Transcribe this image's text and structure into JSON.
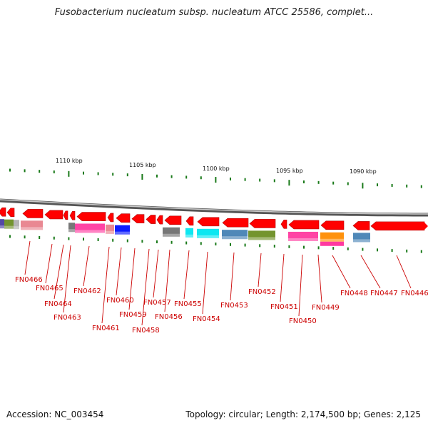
{
  "header": {
    "title": "Fusobacterium nucleatum subsp. nucleatum ATCC 25586, complet..."
  },
  "footer": {
    "accession": "Accession: NC_003454",
    "stats": "Topology: circular; Length: 2,174,500 bp; Genes: 2,125"
  },
  "colors": {
    "gene": "#ff0000",
    "backbone": "#7f7f7f",
    "tick": "#1a7a1a",
    "label": "#cc0000"
  },
  "scale": {
    "labels": [
      "1110 kbp",
      "1105 kbp",
      "1100 kbp",
      "1095 kbp",
      "1090 kbp"
    ]
  },
  "genes": [
    {
      "name": "FN0466",
      "cog_color": "#e8828c"
    },
    {
      "name": "FN0465",
      "cog_color": ""
    },
    {
      "name": "FN0464",
      "cog_color": ""
    },
    {
      "name": "FN0463",
      "cog_color": ""
    },
    {
      "name": "FN0462",
      "cog_color": "#ff3aa0"
    },
    {
      "name": "FN0461",
      "cog_color": "#e8828c"
    },
    {
      "name": "FN0460",
      "cog_color": "#0010ff"
    },
    {
      "name": "FN0459",
      "cog_color": ""
    },
    {
      "name": "FN0458",
      "cog_color": ""
    },
    {
      "name": "FN0457",
      "cog_color": ""
    },
    {
      "name": "FN0456",
      "cog_color": "#707070"
    },
    {
      "name": "FN0455",
      "cog_color": "#00e6f0"
    },
    {
      "name": "FN0454",
      "cog_color": "#00e6f0"
    },
    {
      "name": "FN0453",
      "cog_color": "#4682b4"
    },
    {
      "name": "FN0452",
      "cog_color": "#6b8e23"
    },
    {
      "name": "FN0451",
      "cog_color": ""
    },
    {
      "name": "FN0450",
      "cog_color": "#ff3aa0"
    },
    {
      "name": "FN0449",
      "cog_color": "#ff8c00"
    },
    {
      "name": "FN0448",
      "cog_color": "#4682b4"
    },
    {
      "name": "FN0447",
      "cog_color": ""
    },
    {
      "name": "FN0446",
      "cog_color": ""
    }
  ]
}
